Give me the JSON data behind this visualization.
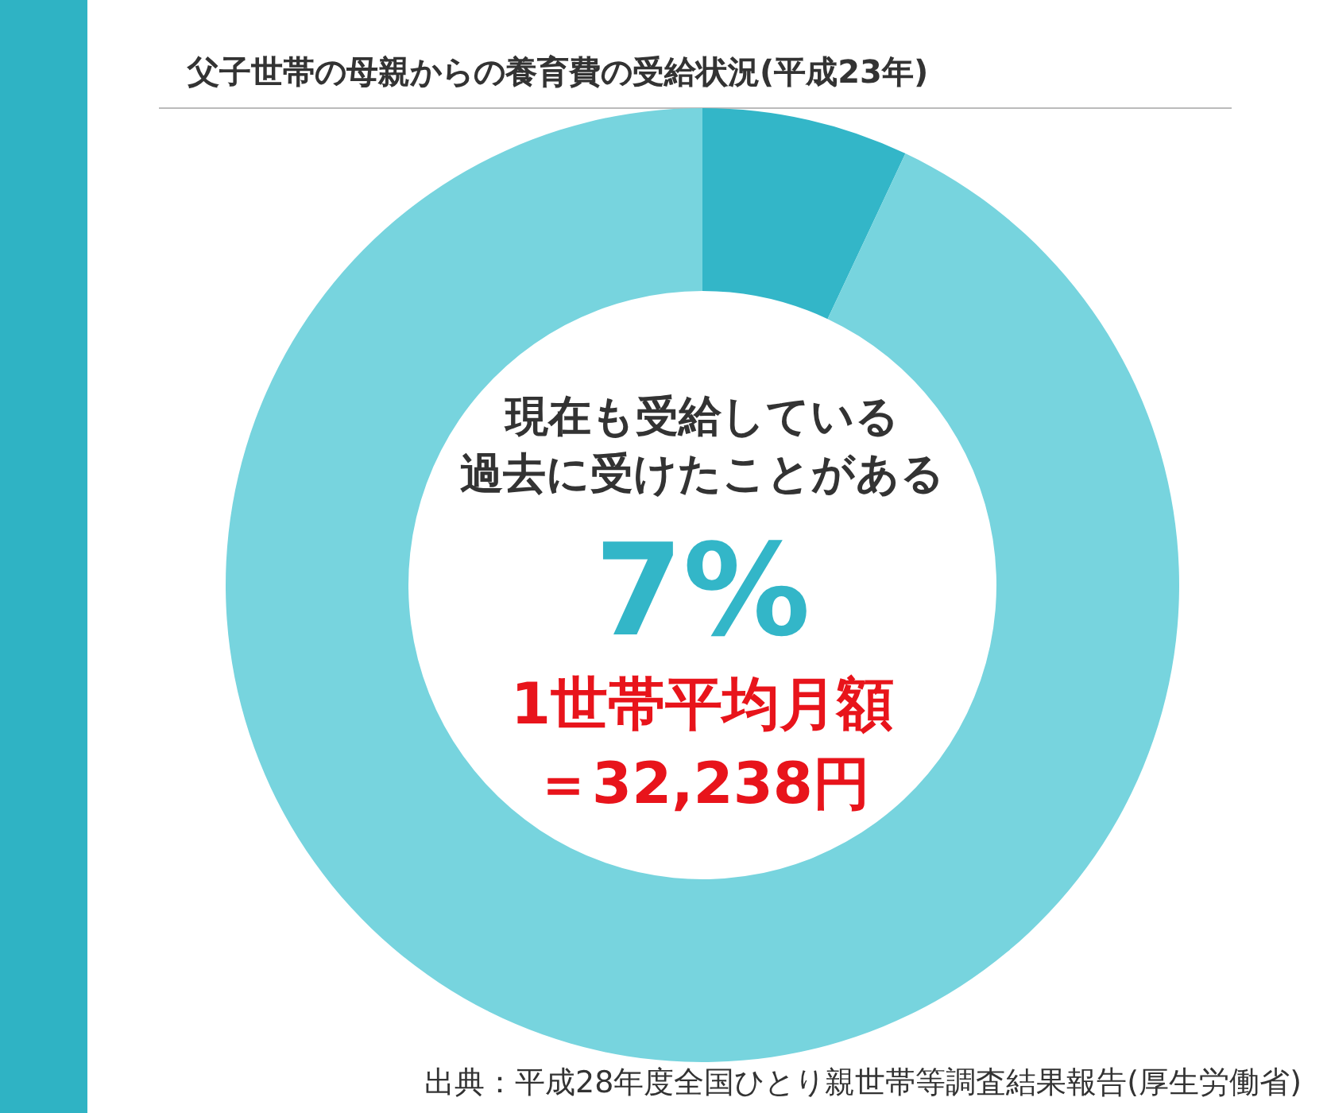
{
  "chart_data": {
    "type": "donut",
    "title": "父子世帯の母親からの養育費の受給状況(平成23年)",
    "categories": [
      "現在も受給している過去に受けたことがある",
      null
    ],
    "values": [
      7,
      93
    ],
    "colors": [
      "#33b6c8",
      "#77d4de"
    ],
    "value_labels": [
      "7%",
      null
    ],
    "annotations": [
      "1世帯平均月額",
      "＝32,238円",
      "出典：平成28年度全国ひとり親世帯等調査結果報告(厚生労働省)"
    ]
  }
}
